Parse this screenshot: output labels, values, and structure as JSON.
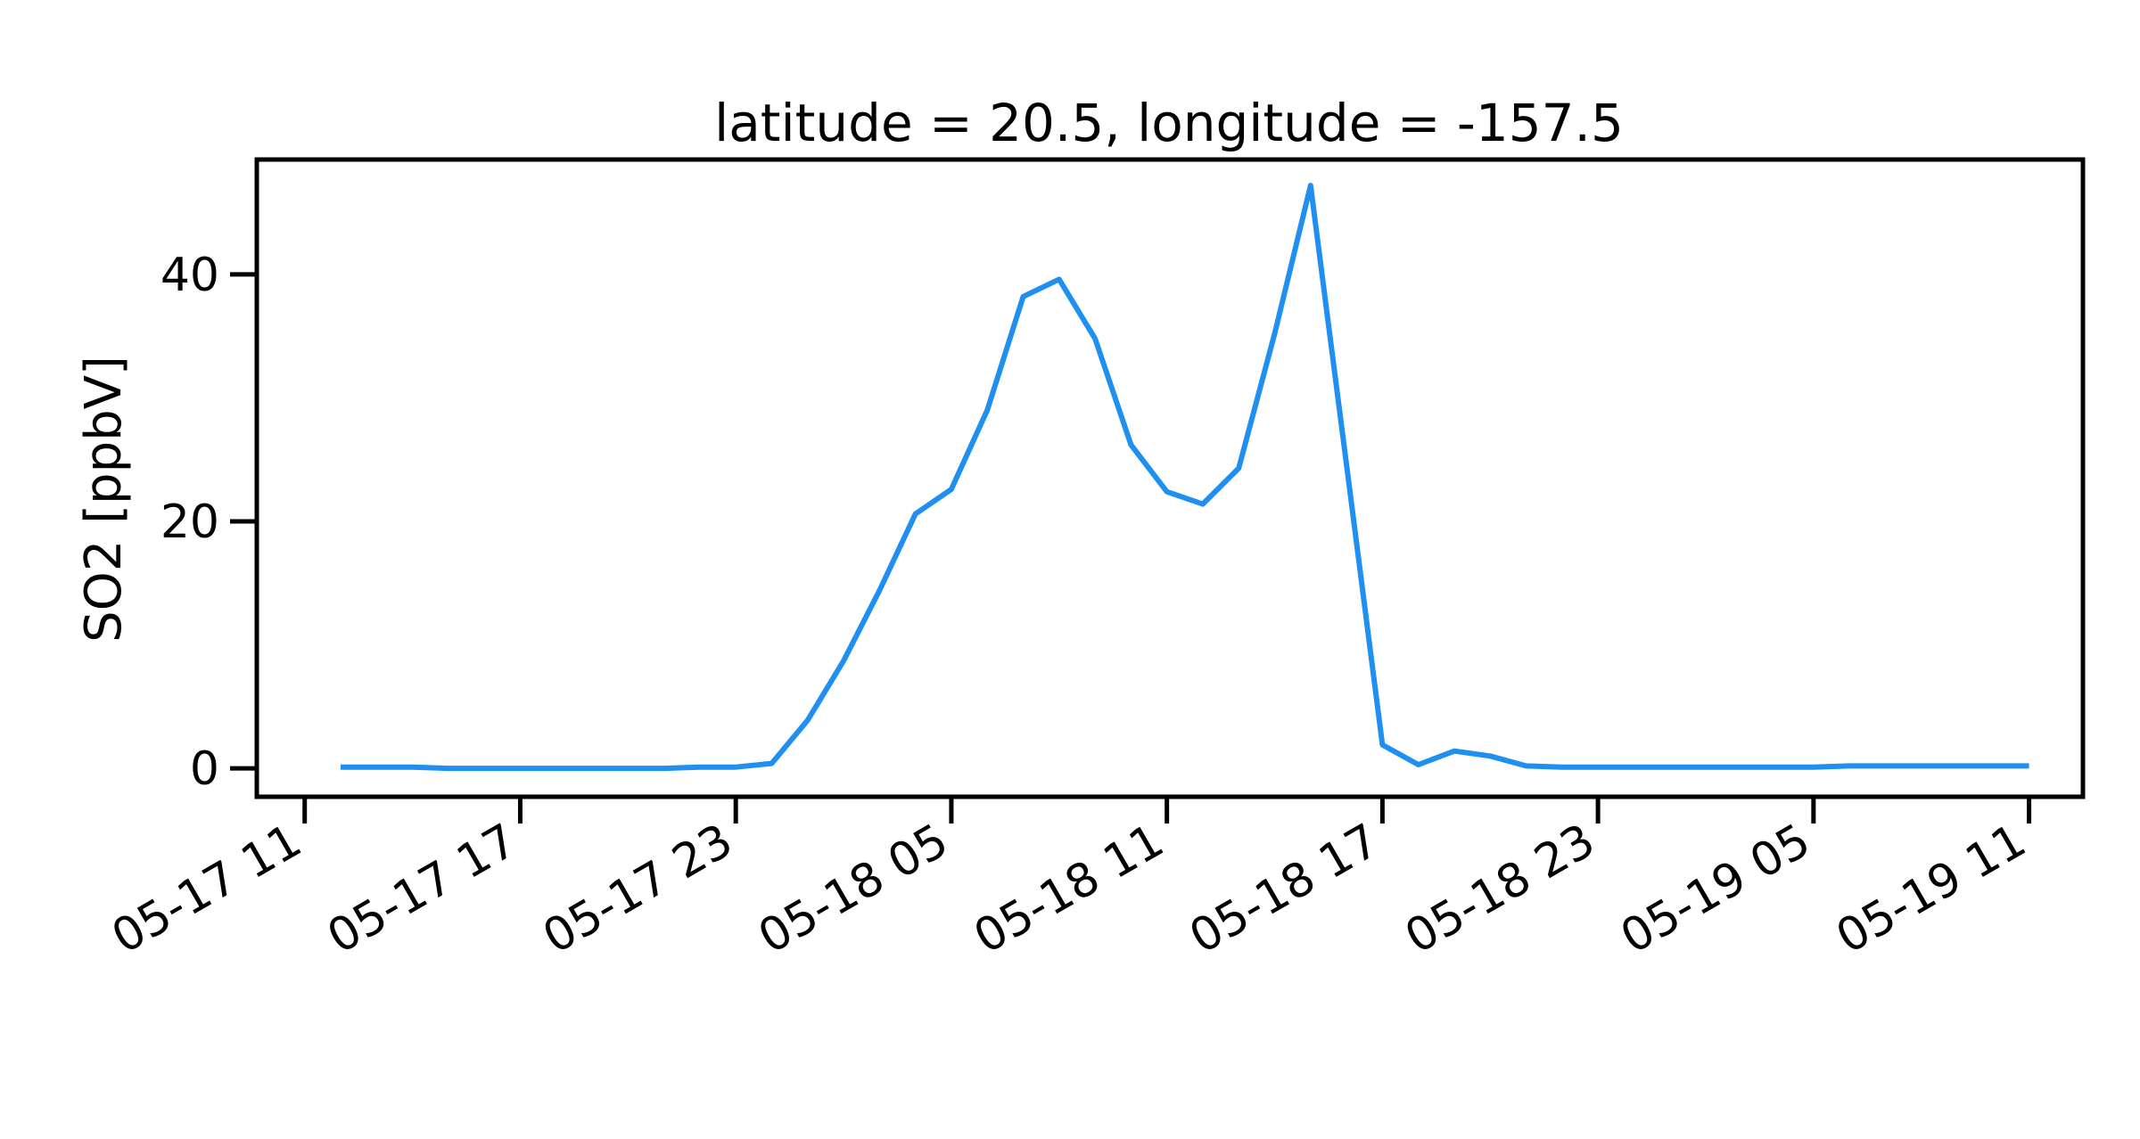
{
  "chart_data": {
    "type": "line",
    "title": "latitude = 20.5, longitude = -157.5",
    "xlabel": "",
    "ylabel": "SO2 [ppbV]",
    "x_ticks": [
      "05-17 11",
      "05-17 17",
      "05-17 23",
      "05-18 05",
      "05-18 11",
      "05-18 17",
      "05-18 23",
      "05-19 05",
      "05-19 11"
    ],
    "y_ticks": [
      "0",
      "20",
      "40"
    ],
    "y_tick_values": [
      0,
      20,
      40
    ],
    "ylim": [
      -2.3,
      49.3
    ],
    "xlim": [
      "2023-05-17 09:40",
      "2023-05-19 12:30"
    ],
    "grid": false,
    "colors": {
      "line": "#1f8ff0",
      "axes": "#000000",
      "background": "#ffffff"
    },
    "series": [
      {
        "x": [
          "2023-05-17 12:00",
          "2023-05-17 13:00",
          "2023-05-17 14:00",
          "2023-05-17 15:00",
          "2023-05-17 16:00",
          "2023-05-17 17:00",
          "2023-05-17 18:00",
          "2023-05-17 19:00",
          "2023-05-17 20:00",
          "2023-05-17 21:00",
          "2023-05-17 22:00",
          "2023-05-17 23:00",
          "2023-05-18 00:00",
          "2023-05-18 01:00",
          "2023-05-18 02:00",
          "2023-05-18 03:00",
          "2023-05-18 04:00",
          "2023-05-18 05:00",
          "2023-05-18 06:00",
          "2023-05-18 07:00",
          "2023-05-18 08:00",
          "2023-05-18 09:00",
          "2023-05-18 10:00",
          "2023-05-18 11:00",
          "2023-05-18 12:00",
          "2023-05-18 13:00",
          "2023-05-18 14:00",
          "2023-05-18 15:00",
          "2023-05-18 16:00",
          "2023-05-18 17:00",
          "2023-05-18 18:00",
          "2023-05-18 19:00",
          "2023-05-18 20:00",
          "2023-05-18 21:00",
          "2023-05-18 22:00",
          "2023-05-18 23:00",
          "2023-05-19 00:00",
          "2023-05-19 01:00",
          "2023-05-19 02:00",
          "2023-05-19 03:00",
          "2023-05-19 04:00",
          "2023-05-19 05:00",
          "2023-05-19 06:00",
          "2023-05-19 07:00",
          "2023-05-19 08:00",
          "2023-05-19 09:00",
          "2023-05-19 10:00",
          "2023-05-19 11:00"
        ],
        "y": [
          0.1,
          0.1,
          0.1,
          0.0,
          0.0,
          0.0,
          0.0,
          0.0,
          0.0,
          0.0,
          0.1,
          0.1,
          0.4,
          3.9,
          8.7,
          14.4,
          20.6,
          22.6,
          29.0,
          38.2,
          39.6,
          34.8,
          26.2,
          22.4,
          21.4,
          24.3,
          35.2,
          47.2,
          24.6,
          1.9,
          0.3,
          1.4,
          1.0,
          0.2,
          0.1,
          0.1,
          0.1,
          0.1,
          0.1,
          0.1,
          0.1,
          0.1,
          0.2,
          0.2,
          0.2,
          0.2,
          0.2,
          0.2
        ]
      }
    ]
  }
}
